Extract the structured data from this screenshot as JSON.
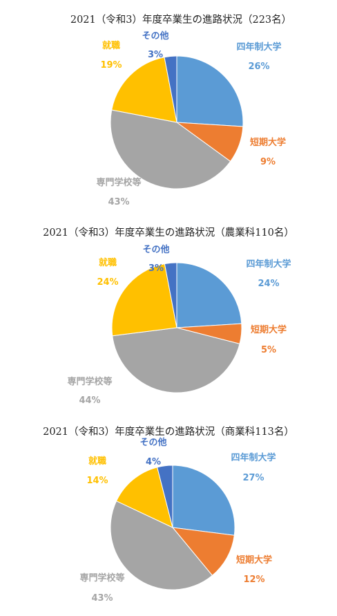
{
  "colors": {
    "univ": "#5b9bd5",
    "junior": "#ed7d31",
    "vocational": "#a5a5a5",
    "job": "#ffc000",
    "other": "#4472c4"
  },
  "chart_data": [
    {
      "type": "pie",
      "title": "2021（令和3）年度卒業生の進路状況（223名）",
      "slices": [
        {
          "name": "四年制大学",
          "value": 26,
          "pct": "26%"
        },
        {
          "name": "短期大学",
          "value": 9,
          "pct": "9%"
        },
        {
          "name": "専門学校等",
          "value": 43,
          "pct": "43%"
        },
        {
          "name": "就職",
          "value": 19,
          "pct": "19%"
        },
        {
          "name": "その他",
          "value": 3,
          "pct": "3%"
        }
      ]
    },
    {
      "type": "pie",
      "title": "2021（令和3）年度卒業生の進路状況（農業科110名）",
      "slices": [
        {
          "name": "四年制大学",
          "value": 24,
          "pct": "24%"
        },
        {
          "name": "短期大学",
          "value": 5,
          "pct": "5%"
        },
        {
          "name": "専門学校等",
          "value": 44,
          "pct": "44%"
        },
        {
          "name": "就職",
          "value": 24,
          "pct": "24%"
        },
        {
          "name": "その他",
          "value": 3,
          "pct": "3%"
        }
      ]
    },
    {
      "type": "pie",
      "title": "2021（令和3）年度卒業生の進路状況（商業科113名）",
      "slices": [
        {
          "name": "四年制大学",
          "value": 27,
          "pct": "27%"
        },
        {
          "name": "短期大学",
          "value": 12,
          "pct": "12%"
        },
        {
          "name": "専門学校等",
          "value": 43,
          "pct": "43%"
        },
        {
          "name": "就職",
          "value": 14,
          "pct": "14%"
        },
        {
          "name": "その他",
          "value": 4,
          "pct": "4%"
        }
      ]
    }
  ]
}
